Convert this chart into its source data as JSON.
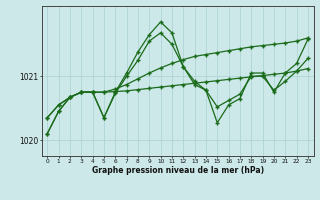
{
  "title": "Graphe pression niveau de la mer (hPa)",
  "background_color": "#cce8e8",
  "grid_color": "#aad0d0",
  "line_color": "#1a6b1a",
  "x_labels": [
    "0",
    "1",
    "2",
    "3",
    "4",
    "5",
    "6",
    "7",
    "8",
    "9",
    "10",
    "11",
    "12",
    "13",
    "14",
    "15",
    "16",
    "17",
    "18",
    "19",
    "20",
    "21",
    "22",
    "23"
  ],
  "ylim": [
    1019.75,
    1022.1
  ],
  "yticks": [
    1020,
    1021
  ],
  "s1": [
    1020.35,
    1020.55,
    1020.67,
    1020.75,
    1020.75,
    1020.75,
    1020.76,
    1020.77,
    1020.79,
    1020.81,
    1020.83,
    1020.85,
    1020.87,
    1020.89,
    1020.91,
    1020.93,
    1020.95,
    1020.97,
    1020.99,
    1021.01,
    1021.03,
    1021.05,
    1021.08,
    1021.12
  ],
  "s2": [
    1020.35,
    1020.55,
    1020.67,
    1020.75,
    1020.75,
    1020.75,
    1020.8,
    1020.87,
    1020.96,
    1021.05,
    1021.13,
    1021.2,
    1021.26,
    1021.31,
    1021.34,
    1021.37,
    1021.4,
    1021.43,
    1021.46,
    1021.48,
    1021.5,
    1021.52,
    1021.55,
    1021.6
  ],
  "s3": [
    1020.1,
    1020.45,
    1020.67,
    1020.75,
    1020.75,
    1020.35,
    1020.75,
    1021.05,
    1021.38,
    1021.65,
    1021.85,
    1021.68,
    1021.15,
    1020.87,
    1020.78,
    1020.27,
    1020.55,
    1020.65,
    1021.05,
    1021.05,
    1020.75,
    1021.05,
    1021.2,
    1021.58
  ],
  "s4": [
    1020.1,
    1020.45,
    1020.67,
    1020.75,
    1020.75,
    1020.35,
    1020.73,
    1021.0,
    1021.25,
    1021.55,
    1021.68,
    1021.5,
    1021.15,
    1020.92,
    1020.78,
    1020.52,
    1020.62,
    1020.72,
    1021.0,
    1021.0,
    1020.78,
    1020.92,
    1021.08,
    1021.28
  ]
}
